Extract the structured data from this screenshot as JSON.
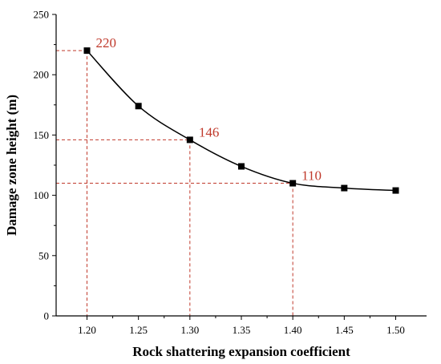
{
  "chart_data": {
    "type": "line",
    "xlabel": "Rock shattering expansion coefficient",
    "ylabel": "Damage zone height (m)",
    "xlim": [
      1.17,
      1.53
    ],
    "ylim": [
      0,
      250
    ],
    "x_ticks": [
      "1.20",
      "1.25",
      "1.30",
      "1.35",
      "1.40",
      "1.45",
      "1.50"
    ],
    "y_ticks": [
      "0",
      "50",
      "100",
      "150",
      "200",
      "250"
    ],
    "series": [
      {
        "x": [
          1.2,
          1.25,
          1.3,
          1.35,
          1.4,
          1.45,
          1.5
        ],
        "y": [
          220,
          174,
          146,
          124,
          110,
          106,
          104
        ],
        "color": "#000000",
        "marker": "square"
      }
    ],
    "annotations": [
      {
        "x": 1.2,
        "y": 220,
        "label": "220"
      },
      {
        "x": 1.3,
        "y": 146,
        "label": "146"
      },
      {
        "x": 1.4,
        "y": 110,
        "label": "110"
      }
    ],
    "annotation_color": "#c0392b",
    "grid": false,
    "legend": "none"
  }
}
